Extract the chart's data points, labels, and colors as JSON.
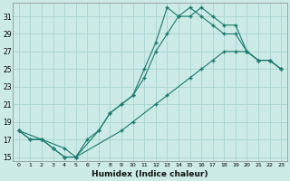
{
  "xlabel": "Humidex (Indice chaleur)",
  "bg_color": "#cceae6",
  "grid_color": "#aad4d0",
  "line_color": "#1a7a6e",
  "xlim": [
    -0.5,
    23.5
  ],
  "ylim": [
    14.5,
    32.5
  ],
  "yticks": [
    15,
    17,
    19,
    21,
    23,
    25,
    27,
    29,
    31
  ],
  "xticks": [
    0,
    1,
    2,
    3,
    4,
    5,
    6,
    7,
    8,
    9,
    10,
    11,
    12,
    13,
    14,
    15,
    16,
    17,
    18,
    19,
    20,
    21,
    22,
    23
  ],
  "line1_x": [
    0,
    1,
    2,
    3,
    4,
    5,
    6,
    7,
    8,
    9,
    10,
    11,
    12,
    13,
    14,
    15,
    16,
    17,
    18,
    19,
    20,
    21,
    22,
    23
  ],
  "line1_y": [
    18,
    17,
    17,
    16,
    15,
    15,
    17,
    18,
    20,
    21,
    22,
    24,
    27,
    29,
    31,
    32,
    31,
    30,
    29,
    29,
    27,
    26,
    26,
    25
  ],
  "line2_x": [
    0,
    1,
    2,
    3,
    4,
    5,
    7,
    8,
    9,
    10,
    11,
    12,
    13,
    14,
    15,
    16,
    17,
    18,
    19,
    20,
    21,
    22,
    23
  ],
  "line2_y": [
    18,
    17,
    17,
    16,
    15,
    15,
    18,
    20,
    21,
    22,
    25,
    28,
    32,
    31,
    31,
    32,
    31,
    30,
    30,
    27,
    26,
    26,
    25
  ],
  "line3_x": [
    0,
    2,
    4,
    5,
    9,
    10,
    12,
    13,
    15,
    16,
    17,
    18,
    19,
    20,
    21,
    22,
    23
  ],
  "line3_y": [
    18,
    17,
    16,
    15,
    18,
    19,
    21,
    22,
    24,
    25,
    26,
    27,
    27,
    27,
    26,
    26,
    25
  ]
}
